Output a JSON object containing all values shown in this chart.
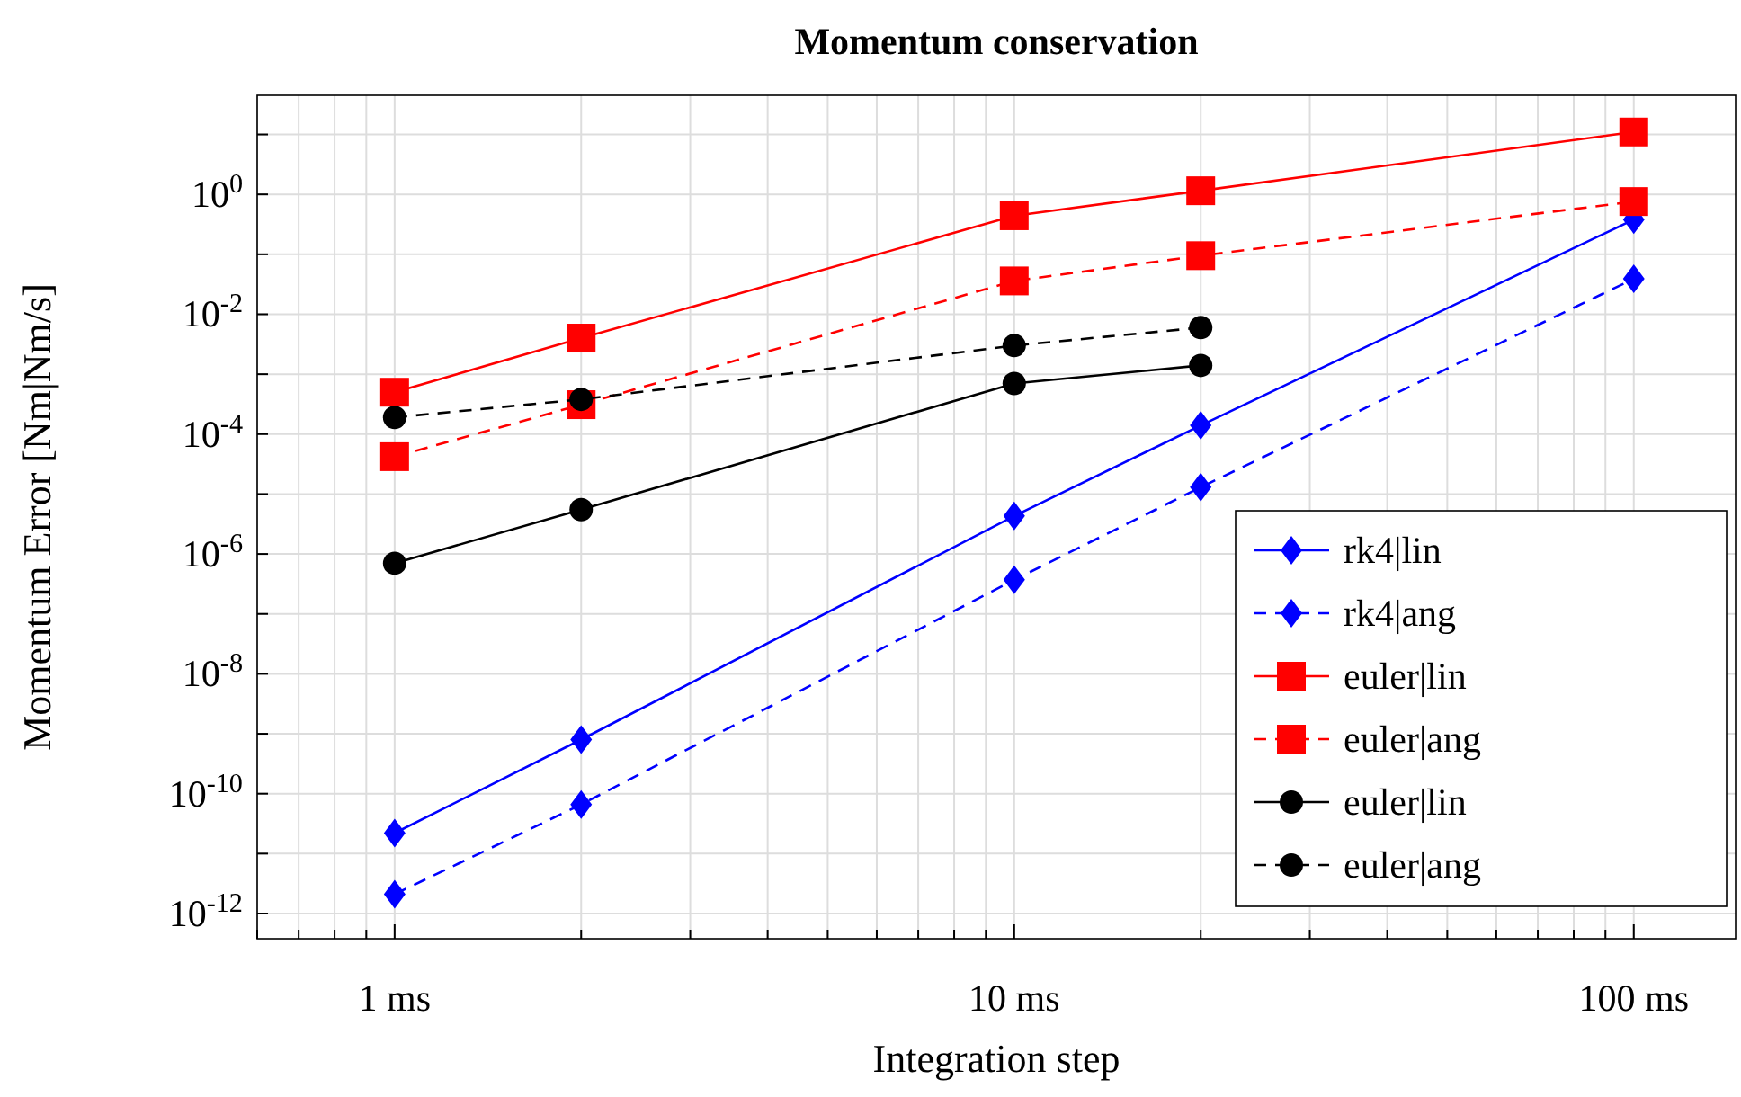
{
  "chart_data": {
    "type": "line",
    "title": "Momentum conservation",
    "xlabel": "Integration step",
    "ylabel": "Momentum Error [Nm|Nm/s]",
    "log": "xy",
    "grid": true,
    "legend": "bottom right",
    "x": [
      1,
      2,
      10,
      20,
      100
    ],
    "xlim": [
      0.6,
      146
    ],
    "xticks": [
      {
        "value": 0.6,
        "label": null
      },
      {
        "value": 0.7,
        "label": null
      },
      {
        "value": 0.8,
        "label": null
      },
      {
        "value": 0.9,
        "label": null
      },
      {
        "value": 1,
        "label": "1 ms"
      },
      {
        "value": 2,
        "label": null
      },
      {
        "value": 3,
        "label": null
      },
      {
        "value": 4,
        "label": null
      },
      {
        "value": 5,
        "label": null
      },
      {
        "value": 6,
        "label": null
      },
      {
        "value": 7,
        "label": null
      },
      {
        "value": 8,
        "label": null
      },
      {
        "value": 9,
        "label": null
      },
      {
        "value": 10,
        "label": "10 ms"
      },
      {
        "value": 20,
        "label": null
      },
      {
        "value": 30,
        "label": null
      },
      {
        "value": 40,
        "label": null
      },
      {
        "value": 50,
        "label": null
      },
      {
        "value": 60,
        "label": null
      },
      {
        "value": 70,
        "label": null
      },
      {
        "value": 80,
        "label": null
      },
      {
        "value": 90,
        "label": null
      },
      {
        "value": 100,
        "label": "100 ms"
      }
    ],
    "ylim": [
      3.8e-13,
      45
    ],
    "yticks": [
      {
        "value": 1e-12,
        "label": "10$^{-12}$"
      },
      {
        "value": 1e-11,
        "label": null
      },
      {
        "value": 1e-10,
        "label": "10$^{-10}$"
      },
      {
        "value": 1e-09,
        "label": null
      },
      {
        "value": 1e-08,
        "label": "10$^{-8}$"
      },
      {
        "value": 1e-07,
        "label": null
      },
      {
        "value": 1e-06,
        "label": "10$^{-6}$"
      },
      {
        "value": 1e-05,
        "label": null
      },
      {
        "value": 0.0001,
        "label": "10$^{-4}$"
      },
      {
        "value": 0.001,
        "label": null
      },
      {
        "value": 0.01,
        "label": "10$^{-2}$"
      },
      {
        "value": 0.1,
        "label": null
      },
      {
        "value": 1,
        "label": "10$^{0}$"
      },
      {
        "value": 10,
        "label": null
      }
    ],
    "series": [
      {
        "name": "rk4|lin",
        "color": "#0000ff",
        "marker": "diamond",
        "line_style": "solid",
        "values": [
          2.2e-11,
          8e-10,
          4.3e-06,
          0.00014,
          0.38
        ]
      },
      {
        "name": "rk4|ang",
        "color": "#0000ff",
        "marker": "diamond",
        "line_style": "dashed",
        "values": [
          2.1e-12,
          6.6e-11,
          3.7e-07,
          1.3e-05,
          0.039
        ]
      },
      {
        "name": "euler|lin",
        "color": "#ff0000",
        "marker": "square",
        "line_style": "solid",
        "values": [
          0.0005,
          0.004,
          0.44,
          1.15,
          11
        ]
      },
      {
        "name": "euler|ang",
        "color": "#ff0000",
        "marker": "square",
        "line_style": "dashed",
        "values": [
          4.2e-05,
          0.00031,
          0.036,
          0.095,
          0.76
        ]
      },
      {
        "name": "euler|lin",
        "color": "#000000",
        "marker": "circle",
        "line_style": "solid",
        "values": [
          7e-07,
          5.5e-06,
          0.0007,
          0.0014,
          null
        ]
      },
      {
        "name": "euler|ang",
        "color": "#000000",
        "marker": "circle",
        "line_style": "dashed",
        "values": [
          0.00019,
          0.00038,
          0.003,
          0.006,
          null
        ]
      }
    ]
  }
}
